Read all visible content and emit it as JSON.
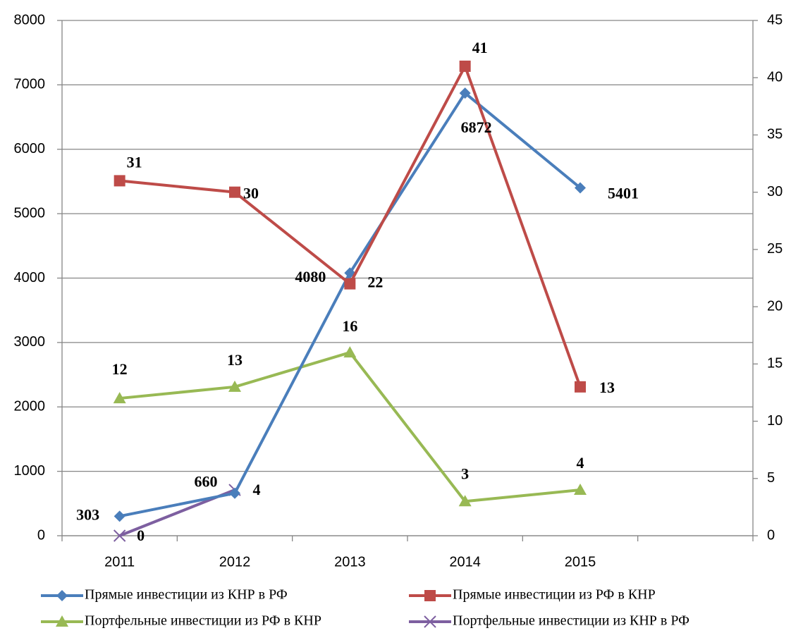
{
  "chart_data": {
    "type": "line",
    "categories": [
      "2011",
      "2012",
      "2013",
      "2014",
      "2015",
      null
    ],
    "series": [
      {
        "name": "Прямые инвестиции из КНР в РФ",
        "color": "#4a7ebb",
        "marker": "diamond",
        "values": [
          303,
          660,
          4080,
          6872,
          5401,
          null
        ]
      },
      {
        "name": "Прямые инвестиции из РФ в КНР",
        "color": "#be4b48",
        "marker": "square",
        "axis": "y2",
        "values": [
          31,
          30,
          22,
          41,
          13,
          null
        ]
      },
      {
        "name": "Портфельные инвестиции из РФ в КНР",
        "color": "#98b954",
        "marker": "triangle",
        "axis": "y2",
        "values": [
          12,
          13,
          16,
          3,
          4,
          null
        ]
      },
      {
        "name": "Портфельные инвестиции из КНР в РФ",
        "color": "#7d5fa0",
        "marker": "x",
        "axis": "y2",
        "values": [
          0,
          4,
          null,
          null,
          null,
          null
        ]
      }
    ],
    "ylim": [
      0,
      8000
    ],
    "yticks": [
      0,
      1000,
      2000,
      3000,
      4000,
      5000,
      6000,
      7000,
      8000
    ],
    "y2lim": [
      0,
      45
    ],
    "y2ticks": [
      0,
      5,
      10,
      15,
      20,
      25,
      30,
      35,
      40,
      45
    ],
    "grid": true,
    "legend": "bottom"
  }
}
